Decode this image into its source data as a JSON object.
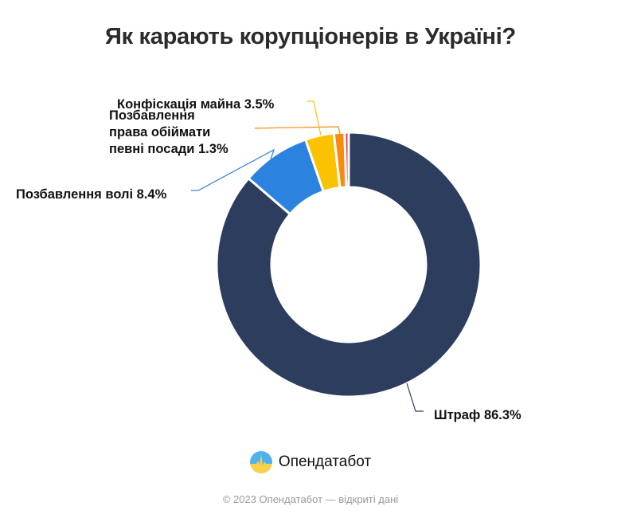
{
  "chart_data": {
    "type": "pie",
    "variant": "donut",
    "title": "Як карають корупціонерів в Україні?",
    "slices": [
      {
        "label": "Штраф",
        "value": 86.3,
        "display": "Штраф 86.3%",
        "color": "#2d3d5e"
      },
      {
        "label": "Позбавлення волі",
        "value": 8.4,
        "display": "Позбавлення волі 8.4%",
        "color": "#2c83df"
      },
      {
        "label": "Конфіскація майна",
        "value": 3.5,
        "display": "Конфіскація майна 3.5%",
        "color": "#fbc200"
      },
      {
        "label": "Позбавлення права обіймати певні посади",
        "value": 1.3,
        "display_lines": [
          "Позбавлення",
          "права обіймати",
          "певні посади 1.3%"
        ],
        "color": "#f98a10"
      },
      {
        "label": "",
        "value": 0.5,
        "color": "#ee3b4c"
      }
    ],
    "legend": "none",
    "start_angle": "top",
    "direction": "clockwise"
  },
  "logo": {
    "name": "Опендатабот"
  },
  "footer": "© 2023 Опендатабот — відкриті дані"
}
